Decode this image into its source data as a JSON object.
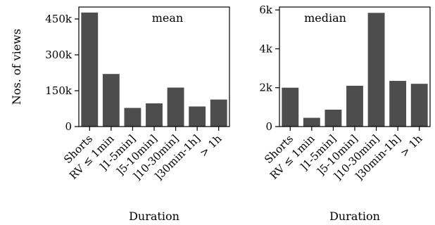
{
  "ylabel": "Nos. of views",
  "chart_data": [
    {
      "type": "bar",
      "title": "mean",
      "xlabel": "Duration",
      "ylabel": "Nos. of views",
      "categories": [
        "Shorts",
        "RV ≤ 1min",
        "]1-5min]",
        "]5-10min]",
        "]10-30min]",
        "]30min-1h]",
        "> 1h"
      ],
      "values": [
        477000,
        220000,
        78000,
        97000,
        163000,
        84000,
        113000
      ],
      "ylim": [
        0,
        500000
      ],
      "yticks": [
        0,
        150000,
        300000,
        450000
      ],
      "yticklabels": [
        "0",
        "150k",
        "300k",
        "450k"
      ],
      "bar_color": "#4d4d4d",
      "grid": false
    },
    {
      "type": "bar",
      "title": "median",
      "xlabel": "Duration",
      "ylabel": "",
      "categories": [
        "Shorts",
        "RV ≤ 1min",
        "]1-5min]",
        "]5-10min]",
        "]10-30min]",
        "]30min-1h]",
        "> 1h"
      ],
      "values": [
        2000,
        450,
        870,
        2100,
        5850,
        2350,
        2200
      ],
      "ylim": [
        0,
        6150
      ],
      "yticks": [
        0,
        2000,
        4000,
        6000
      ],
      "yticklabels": [
        "0",
        "2k",
        "4k",
        "6k"
      ],
      "bar_color": "#4d4d4d",
      "grid": false
    }
  ]
}
